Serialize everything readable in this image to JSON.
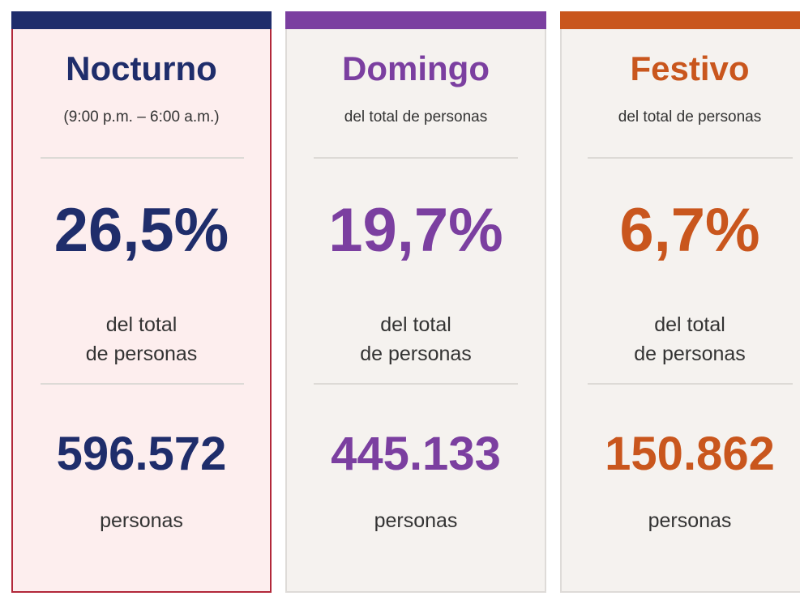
{
  "cards": [
    {
      "title": "Nocturno",
      "subtitle": "(9:00 p.m. – 6:00 a.m.)",
      "percent": "26,5%",
      "percent_caption": [
        "del total",
        "de personas"
      ],
      "count": "596.572",
      "count_label": "personas"
    },
    {
      "title": "Domingo",
      "subtitle": "del total de personas",
      "percent": "19,7%",
      "percent_caption": [
        "del total",
        "de personas"
      ],
      "count": "445.133",
      "count_label": "personas"
    },
    {
      "title": "Festivo",
      "subtitle": "del total de personas",
      "percent": "6,7%",
      "percent_caption": [
        "del total",
        "de personas"
      ],
      "count": "150.862",
      "count_label": "personas"
    }
  ]
}
